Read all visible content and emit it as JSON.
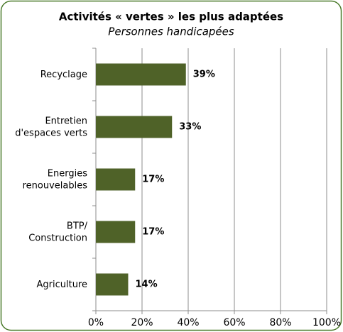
{
  "chart_data": {
    "type": "bar",
    "orientation": "horizontal",
    "title": "Activités «  vertes  » les plus adaptées",
    "subtitle": "Personnes handicapées",
    "categories": [
      [
        "Recyclage"
      ],
      [
        "Entretien",
        "d'espaces verts"
      ],
      [
        "Energies",
        "renouvelables"
      ],
      [
        "BTP/",
        "Construction"
      ],
      [
        "Agriculture"
      ]
    ],
    "values": [
      39,
      33,
      17,
      17,
      14
    ],
    "value_labels": [
      "39%",
      "33%",
      "17%",
      "17%",
      "14%"
    ],
    "color": "#4f6228",
    "xlim": [
      0,
      100
    ],
    "xticks": [
      {
        "value": 0,
        "label": "0%"
      },
      {
        "value": 20,
        "label": "20%"
      },
      {
        "value": 40,
        "label": "40%"
      },
      {
        "value": 60,
        "label": "60%"
      },
      {
        "value": 80,
        "label": "80%"
      },
      {
        "value": 100,
        "label": "100%"
      }
    ],
    "grid": true
  }
}
